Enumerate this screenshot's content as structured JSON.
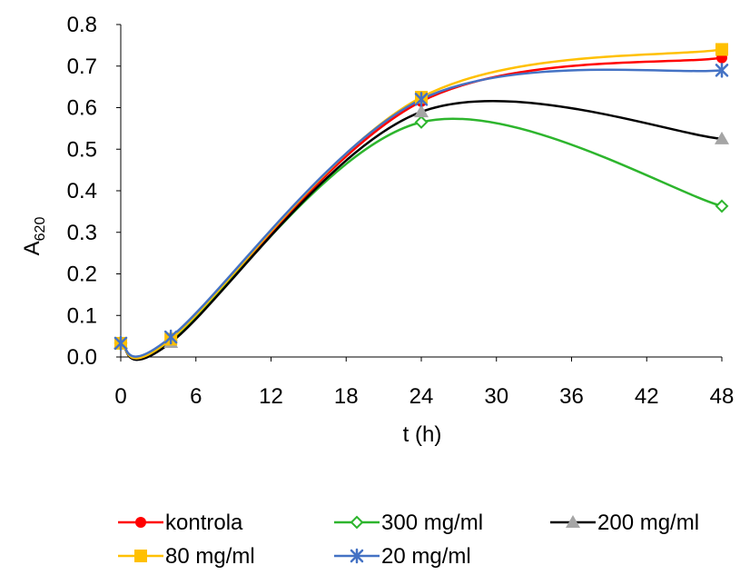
{
  "chart_data": {
    "type": "line",
    "xlabel": "t (h)",
    "ylabel_main": "A",
    "ylabel_sub": "620",
    "x": [
      0,
      4,
      24,
      48
    ],
    "xticks": [
      "0",
      "6",
      "12",
      "18",
      "24",
      "30",
      "36",
      "42",
      "48"
    ],
    "xlim": [
      0,
      48
    ],
    "yticks": [
      "0.0",
      "0.1",
      "0.2",
      "0.3",
      "0.4",
      "0.5",
      "0.6",
      "0.7",
      "0.8"
    ],
    "ylim": [
      0,
      0.8
    ],
    "grid": false,
    "legend_position": "bottom",
    "smoothed": true,
    "series": [
      {
        "name": "kontrola",
        "values": [
          0.033,
          0.045,
          0.615,
          0.72
        ],
        "color": "#ff0000",
        "marker": "circle"
      },
      {
        "name": "300 mg/ml",
        "values": [
          0.033,
          0.04,
          0.565,
          0.363
        ],
        "color": "#2db52d",
        "marker": "diamond-open"
      },
      {
        "name": "200 mg/ml",
        "values": [
          0.033,
          0.035,
          0.59,
          0.525
        ],
        "color": "#000000",
        "marker": "triangle",
        "marker_color": "#a5a5a5"
      },
      {
        "name": "80 mg/ml",
        "values": [
          0.033,
          0.043,
          0.625,
          0.74
        ],
        "color": "#ffc000",
        "marker": "square"
      },
      {
        "name": "20 mg/ml",
        "values": [
          0.033,
          0.048,
          0.62,
          0.69
        ],
        "color": "#4472c4",
        "marker": "asterisk"
      }
    ]
  }
}
